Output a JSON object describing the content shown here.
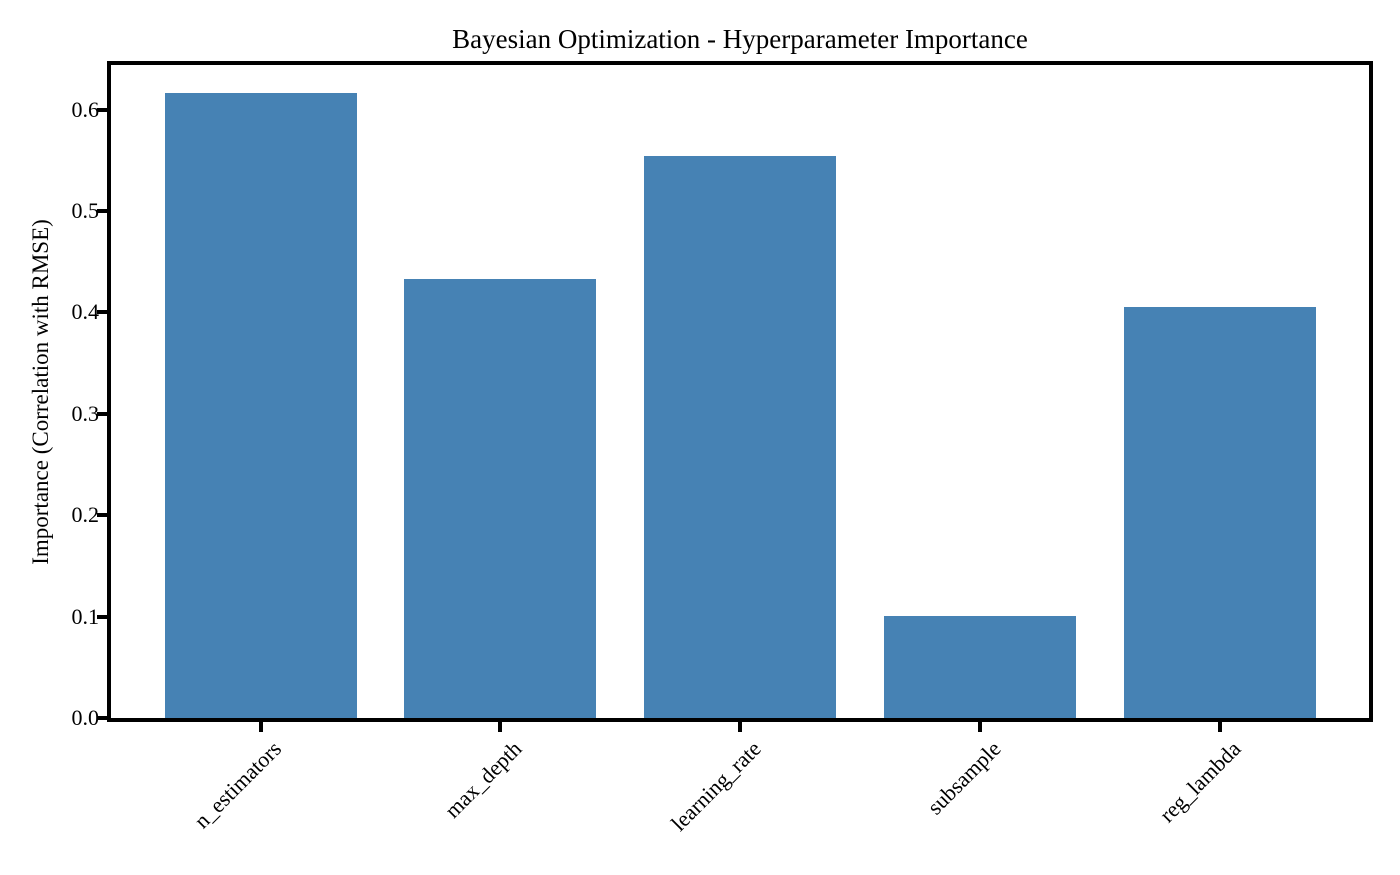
{
  "chart_data": {
    "type": "bar",
    "title": "Bayesian Optimization - Hyperparameter Importance",
    "ylabel": "Importance (Correlation with RMSE)",
    "xlabel": "",
    "categories": [
      "n_estimators",
      "max_depth",
      "learning_rate",
      "subsample",
      "reg_lambda"
    ],
    "values": [
      0.616,
      0.433,
      0.554,
      0.101,
      0.405
    ],
    "ytick_values": [
      0.0,
      0.1,
      0.2,
      0.3,
      0.4,
      0.5,
      0.6
    ],
    "ytick_labels": [
      "0.0",
      "0.1",
      "0.2",
      "0.3",
      "0.4",
      "0.5",
      "0.6"
    ],
    "ylim": [
      0,
      0.644
    ],
    "grid": false,
    "legend_position": "none",
    "x_tick_rotation_deg": 45,
    "bar_color": "#4682B4",
    "spine_color": "#000000",
    "text_color": "#000000"
  }
}
